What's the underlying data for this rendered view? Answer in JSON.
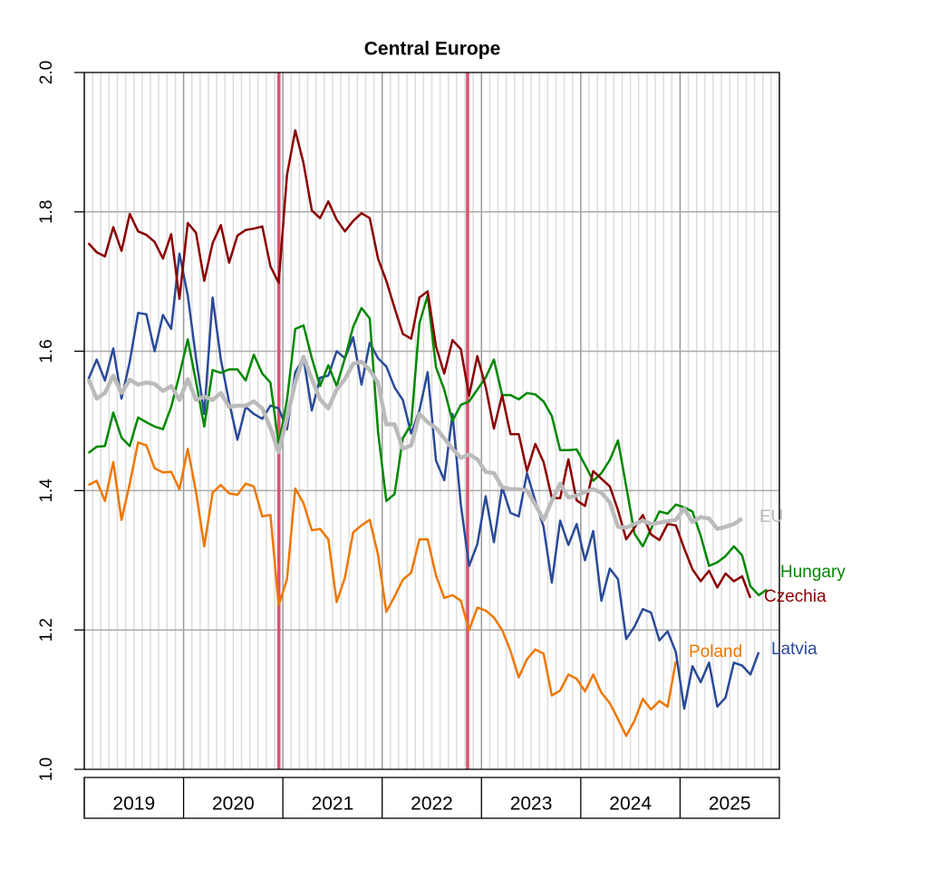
{
  "chart_data": {
    "type": "line",
    "title": "Central Europe",
    "x": [
      2019.042,
      2019.125,
      2019.208,
      2019.292,
      2019.375,
      2019.458,
      2019.542,
      2019.625,
      2019.708,
      2019.792,
      2019.875,
      2019.958,
      2020.042,
      2020.125,
      2020.208,
      2020.292,
      2020.375,
      2020.458,
      2020.542,
      2020.625,
      2020.708,
      2020.792,
      2020.875,
      2020.958,
      2021.042,
      2021.125,
      2021.208,
      2021.292,
      2021.375,
      2021.458,
      2021.542,
      2021.625,
      2021.708,
      2021.792,
      2021.875,
      2021.958,
      2022.042,
      2022.125,
      2022.208,
      2022.292,
      2022.375,
      2022.458,
      2022.542,
      2022.625,
      2022.708,
      2022.792,
      2022.875,
      2022.958,
      2023.042,
      2023.125,
      2023.208,
      2023.292,
      2023.375,
      2023.458,
      2023.542,
      2023.625,
      2023.708,
      2023.792,
      2023.875,
      2023.958,
      2024.042,
      2024.125,
      2024.208,
      2024.292,
      2024.375,
      2024.458,
      2024.542,
      2024.625,
      2024.708,
      2024.792,
      2024.875,
      2024.958,
      2025.042,
      2025.125,
      2025.208,
      2025.292,
      2025.375,
      2025.458,
      2025.542,
      2025.625,
      2025.708,
      2025.792,
      2025.875
    ],
    "series": [
      {
        "name": "Poland",
        "color": "#ee7700",
        "values": [
          1.408,
          1.414,
          1.385,
          1.441,
          1.358,
          1.41,
          1.469,
          1.465,
          1.432,
          1.426,
          1.427,
          1.402,
          1.46,
          1.398,
          1.32,
          1.397,
          1.408,
          1.396,
          1.394,
          1.41,
          1.406,
          1.363,
          1.365,
          1.235,
          1.273,
          1.403,
          1.382,
          1.343,
          1.345,
          1.33,
          1.24,
          1.275,
          1.34,
          1.35,
          1.358,
          1.308,
          1.226,
          1.248,
          1.272,
          1.282,
          1.33,
          1.33,
          1.278,
          1.246,
          1.25,
          1.242,
          1.2,
          1.232,
          1.228,
          1.218,
          1.2,
          1.17,
          1.132,
          1.158,
          1.172,
          1.166,
          1.106,
          1.113,
          1.136,
          1.13,
          1.112,
          1.136,
          1.11,
          1.095,
          1.072,
          1.048,
          1.07,
          1.101,
          1.086,
          1.098,
          1.09,
          1.155,
          null,
          null,
          null,
          null,
          null,
          null,
          null,
          null,
          null,
          null,
          null
        ]
      },
      {
        "name": "Latvia",
        "color": "#2a4a99",
        "values": [
          1.56,
          1.588,
          1.558,
          1.604,
          1.532,
          1.585,
          1.655,
          1.653,
          1.6,
          1.652,
          1.632,
          1.74,
          1.68,
          1.59,
          1.51,
          1.677,
          1.588,
          1.527,
          1.473,
          1.52,
          1.51,
          1.503,
          1.522,
          1.518,
          1.488,
          1.57,
          1.59,
          1.515,
          1.562,
          1.565,
          1.6,
          1.59,
          1.62,
          1.552,
          1.612,
          1.59,
          1.578,
          1.548,
          1.53,
          1.482,
          1.515,
          1.57,
          1.443,
          1.415,
          1.51,
          1.38,
          1.292,
          1.323,
          1.392,
          1.326,
          1.405,
          1.368,
          1.363,
          1.425,
          1.385,
          1.348,
          1.268,
          1.357,
          1.322,
          1.352,
          1.3,
          1.342,
          1.242,
          1.288,
          1.273,
          1.187,
          1.205,
          1.23,
          1.225,
          1.185,
          1.198,
          1.168,
          1.087,
          1.148,
          1.125,
          1.153,
          1.09,
          1.103,
          1.153,
          1.149,
          1.136,
          1.168,
          null
        ]
      },
      {
        "name": "Hungary",
        "color": "#008800",
        "values": [
          1.454,
          1.463,
          1.464,
          1.512,
          1.476,
          1.464,
          1.505,
          1.498,
          1.492,
          1.488,
          1.52,
          1.566,
          1.617,
          1.556,
          1.492,
          1.573,
          1.569,
          1.574,
          1.574,
          1.558,
          1.595,
          1.568,
          1.555,
          1.466,
          1.53,
          1.632,
          1.637,
          1.59,
          1.55,
          1.58,
          1.55,
          1.59,
          1.635,
          1.662,
          1.647,
          1.485,
          1.385,
          1.395,
          1.475,
          1.495,
          1.64,
          1.68,
          1.577,
          1.545,
          1.5,
          1.523,
          1.528,
          1.545,
          1.562,
          1.588,
          1.537,
          1.537,
          1.531,
          1.54,
          1.538,
          1.528,
          1.507,
          1.458,
          1.458,
          1.459,
          1.437,
          1.414,
          1.425,
          1.444,
          1.472,
          1.406,
          1.338,
          1.32,
          1.345,
          1.37,
          1.367,
          1.38,
          1.376,
          1.37,
          1.335,
          1.292,
          1.297,
          1.306,
          1.32,
          1.307,
          1.263,
          1.25,
          1.258
        ]
      },
      {
        "name": "Czechia",
        "color": "#8b0000",
        "values": [
          1.755,
          1.742,
          1.736,
          1.778,
          1.744,
          1.797,
          1.772,
          1.767,
          1.757,
          1.733,
          1.768,
          1.675,
          1.784,
          1.77,
          1.701,
          1.755,
          1.781,
          1.727,
          1.766,
          1.774,
          1.776,
          1.779,
          1.722,
          1.698,
          1.853,
          1.917,
          1.87,
          1.802,
          1.791,
          1.815,
          1.789,
          1.772,
          1.787,
          1.798,
          1.791,
          1.733,
          1.701,
          1.662,
          1.625,
          1.618,
          1.677,
          1.686,
          1.607,
          1.568,
          1.616,
          1.603,
          1.536,
          1.593,
          1.549,
          1.489,
          1.537,
          1.481,
          1.481,
          1.428,
          1.467,
          1.441,
          1.39,
          1.389,
          1.445,
          1.386,
          1.378,
          1.428,
          1.417,
          1.406,
          1.372,
          1.33,
          1.347,
          1.365,
          1.337,
          1.329,
          1.352,
          1.35,
          1.317,
          1.287,
          1.27,
          1.285,
          1.261,
          1.281,
          1.27,
          1.277,
          1.246,
          null,
          null
        ]
      },
      {
        "name": "EU",
        "color": "#bbbbbb",
        "values": [
          1.56,
          1.532,
          1.54,
          1.565,
          1.54,
          1.559,
          1.552,
          1.555,
          1.553,
          1.543,
          1.55,
          1.53,
          1.56,
          1.53,
          1.535,
          1.53,
          1.54,
          1.52,
          1.522,
          1.522,
          1.528,
          1.518,
          1.49,
          1.455,
          1.505,
          1.555,
          1.592,
          1.56,
          1.531,
          1.518,
          1.545,
          1.56,
          1.582,
          1.585,
          1.573,
          1.555,
          1.495,
          1.495,
          1.46,
          1.465,
          1.51,
          1.498,
          1.49,
          1.475,
          1.46,
          1.447,
          1.452,
          1.445,
          1.427,
          1.425,
          1.405,
          1.402,
          1.402,
          1.4,
          1.38,
          1.358,
          1.385,
          1.41,
          1.39,
          1.393,
          1.398,
          1.402,
          1.397,
          1.383,
          1.348,
          1.347,
          1.352,
          1.357,
          1.352,
          1.354,
          1.356,
          1.358,
          1.374,
          1.355,
          1.362,
          1.36,
          1.345,
          1.348,
          1.352,
          1.36,
          null,
          null,
          null
        ]
      }
    ],
    "vlines": {
      "values": [
        2020.96,
        2022.86
      ],
      "color": "#e0506e"
    },
    "xlim": [
      2019,
      2026
    ],
    "xticks": [
      {
        "value": 2019.5,
        "label": "2019"
      },
      {
        "value": 2020.5,
        "label": "2020"
      },
      {
        "value": 2021.5,
        "label": "2021"
      },
      {
        "value": 2022.5,
        "label": "2022"
      },
      {
        "value": 2023.5,
        "label": "2023"
      },
      {
        "value": 2024.5,
        "label": "2024"
      },
      {
        "value": 2025.5,
        "label": "2025"
      }
    ],
    "ylim": [
      1.0,
      2.0
    ],
    "yticks": [
      {
        "value": 1.0,
        "label": "1.0"
      },
      1.2,
      1.4,
      1.6,
      1.8,
      {
        "value": 2.0,
        "label": "2.0"
      }
    ],
    "grid": true
  }
}
